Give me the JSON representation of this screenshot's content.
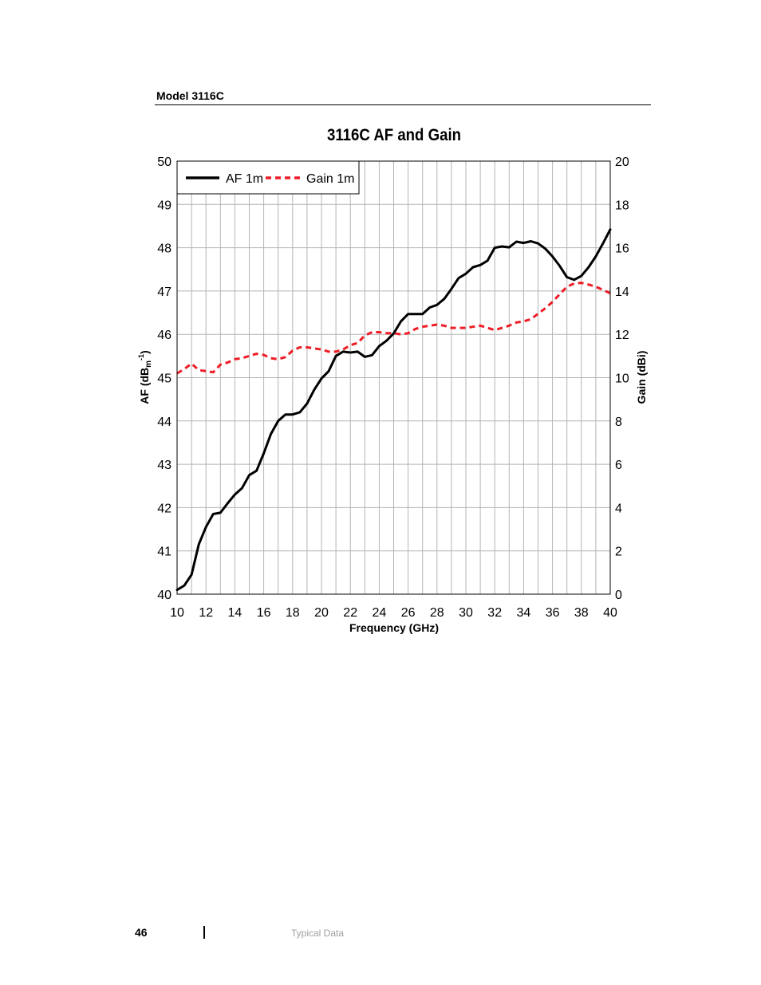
{
  "header": {
    "model": "Model 3116C"
  },
  "footer": {
    "page_number": "46",
    "section": "Typical Data"
  },
  "chart_data": {
    "type": "line",
    "title": "3116C AF and Gain",
    "xlabel": "Frequency (GHz)",
    "ylabel_left": "AF (dB",
    "ylabel_left_sub": "m",
    "ylabel_left_sup": "-1",
    "ylabel_left_end": ")",
    "ylabel_right": "Gain (dBi)",
    "xlim": [
      10,
      40
    ],
    "ylim_left": [
      40,
      50
    ],
    "ylim_right": [
      0,
      20
    ],
    "xticks": [
      10,
      12,
      14,
      16,
      18,
      20,
      22,
      24,
      26,
      28,
      30,
      32,
      34,
      36,
      38,
      40
    ],
    "yticks_left": [
      40,
      41,
      42,
      43,
      44,
      45,
      46,
      47,
      48,
      49,
      50
    ],
    "yticks_right": [
      0,
      2,
      4,
      6,
      8,
      10,
      12,
      14,
      16,
      18,
      20
    ],
    "grid": true,
    "legend_position": "top-left",
    "series": [
      {
        "name": "AF 1m",
        "axis": "left",
        "color": "#000000",
        "style": "solid",
        "x": [
          10,
          10.5,
          11,
          11.5,
          12,
          12.5,
          13,
          13.5,
          14,
          14.5,
          15,
          15.5,
          16,
          16.5,
          17,
          17.5,
          18,
          18.5,
          19,
          19.5,
          20,
          20.5,
          21,
          21.5,
          22,
          22.5,
          23,
          23.5,
          24,
          24.5,
          25,
          25.5,
          26,
          26.5,
          27,
          27.5,
          28,
          28.5,
          29,
          29.5,
          30,
          30.5,
          31,
          31.5,
          32,
          32.5,
          33,
          33.5,
          34,
          34.5,
          35,
          35.5,
          36,
          36.5,
          37,
          37.5,
          38,
          38.5,
          39,
          39.5,
          40
        ],
        "y": [
          40.1,
          40.2,
          40.45,
          41.15,
          41.55,
          41.85,
          41.88,
          42.1,
          42.3,
          42.45,
          42.75,
          42.85,
          43.25,
          43.7,
          44.0,
          44.15,
          44.15,
          44.2,
          44.4,
          44.72,
          44.98,
          45.15,
          45.5,
          45.6,
          45.58,
          45.6,
          45.48,
          45.52,
          45.73,
          45.85,
          46.02,
          46.3,
          46.47,
          46.47,
          46.47,
          46.62,
          46.68,
          46.82,
          47.05,
          47.3,
          47.4,
          47.55,
          47.6,
          47.7,
          48.0,
          48.03,
          48.01,
          48.14,
          48.11,
          48.15,
          48.1,
          47.98,
          47.8,
          47.58,
          47.32,
          47.26,
          47.35,
          47.55,
          47.8,
          48.1,
          48.42
        ]
      },
      {
        "name": "Gain 1m",
        "axis": "right",
        "color": "#ee1c25",
        "style": "dashed",
        "x": [
          10,
          10.5,
          11,
          11.5,
          12,
          12.5,
          13,
          13.5,
          14,
          14.5,
          15,
          15.5,
          16,
          16.5,
          17,
          17.5,
          18,
          18.5,
          19,
          19.5,
          20,
          20.5,
          21,
          21.5,
          22,
          22.5,
          23,
          23.5,
          24,
          24.5,
          25,
          25.5,
          26,
          26.5,
          27,
          27.5,
          28,
          28.5,
          29,
          29.5,
          30,
          30.5,
          31,
          31.5,
          32,
          32.5,
          33,
          33.5,
          34,
          34.5,
          35,
          35.5,
          36,
          36.5,
          37,
          37.5,
          38,
          38.5,
          39,
          39.5,
          40
        ],
        "y": [
          10.2,
          10.4,
          10.65,
          10.35,
          10.3,
          10.25,
          10.6,
          10.7,
          10.85,
          10.9,
          11.0,
          11.1,
          11.05,
          10.9,
          10.85,
          10.95,
          11.25,
          11.4,
          11.4,
          11.35,
          11.3,
          11.2,
          11.2,
          11.3,
          11.5,
          11.6,
          11.95,
          12.1,
          12.1,
          12.05,
          12.05,
          12.0,
          12.05,
          12.25,
          12.35,
          12.4,
          12.45,
          12.4,
          12.3,
          12.3,
          12.3,
          12.35,
          12.4,
          12.3,
          12.2,
          12.3,
          12.4,
          12.55,
          12.6,
          12.7,
          12.95,
          13.2,
          13.5,
          13.85,
          14.2,
          14.35,
          14.38,
          14.3,
          14.2,
          14.05,
          13.9
        ]
      }
    ]
  }
}
